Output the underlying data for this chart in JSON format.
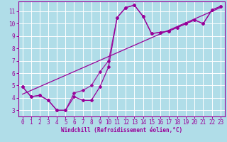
{
  "xlabel": "Windchill (Refroidissement éolien,°C)",
  "bg_color": "#b0dde8",
  "line_color": "#990099",
  "grid_color": "#ffffff",
  "xlim": [
    -0.5,
    23.5
  ],
  "ylim": [
    2.5,
    11.8
  ],
  "xticks": [
    0,
    1,
    2,
    3,
    4,
    5,
    6,
    7,
    8,
    9,
    10,
    11,
    12,
    13,
    14,
    15,
    16,
    17,
    18,
    19,
    20,
    21,
    22,
    23
  ],
  "yticks": [
    3,
    4,
    5,
    6,
    7,
    8,
    9,
    10,
    11
  ],
  "series1_x": [
    0,
    1,
    2,
    3,
    4,
    5,
    6,
    7,
    8,
    9,
    10,
    11,
    12,
    13,
    14,
    15,
    16,
    17,
    18,
    19,
    20,
    21,
    22,
    23
  ],
  "series1_y": [
    4.9,
    4.1,
    4.2,
    3.8,
    3.0,
    3.0,
    4.1,
    3.8,
    3.8,
    4.9,
    6.5,
    10.5,
    11.3,
    11.5,
    10.6,
    9.2,
    9.3,
    9.4,
    9.7,
    10.0,
    10.3,
    10.0,
    11.1,
    11.4
  ],
  "series2_x": [
    0,
    1,
    2,
    3,
    4,
    5,
    6,
    7,
    8,
    9,
    10,
    11,
    12,
    13,
    14,
    15,
    16,
    17,
    18,
    19,
    20,
    21,
    22,
    23
  ],
  "series2_y": [
    4.9,
    4.1,
    4.2,
    3.8,
    3.0,
    3.0,
    4.4,
    4.6,
    5.0,
    6.1,
    7.0,
    10.5,
    11.3,
    11.5,
    10.6,
    9.2,
    9.3,
    9.4,
    9.7,
    10.0,
    10.3,
    10.0,
    11.1,
    11.4
  ],
  "trend_x": [
    0,
    23
  ],
  "trend_y": [
    4.3,
    11.3
  ]
}
